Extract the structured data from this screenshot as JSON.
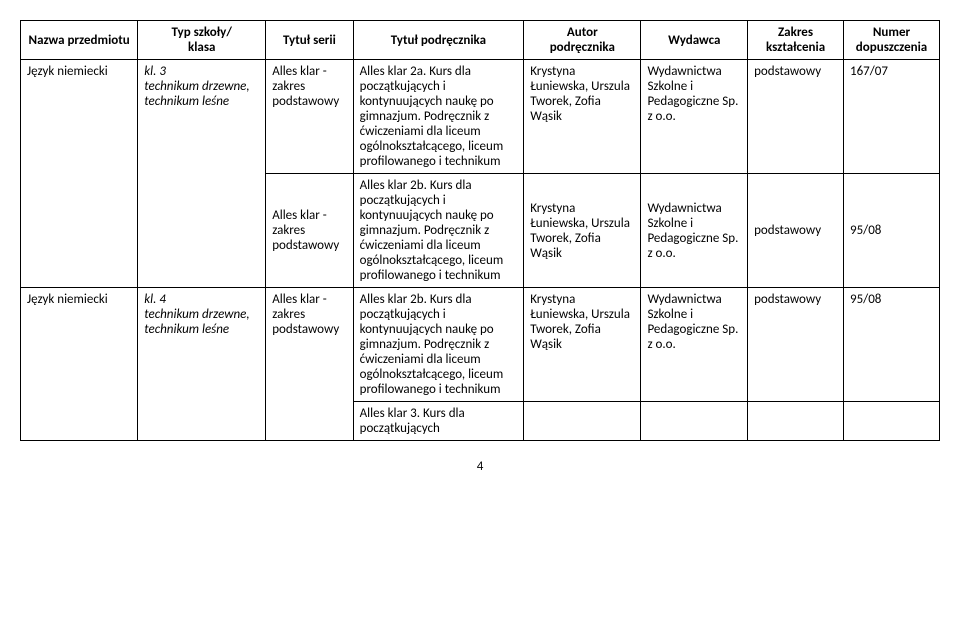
{
  "headers": {
    "subject": "Nazwa przedmiotu",
    "type_l1": "Typ szkoły/",
    "type_l2": "klasa",
    "series": "Tytuł serii",
    "title": "Tytuł podręcznika",
    "author_l1": "Autor",
    "author_l2": "podręcznika",
    "publisher": "Wydawca",
    "scope_l1": "Zakres",
    "scope_l2": "kształcenia",
    "num_l1": "Numer",
    "num_l2": "dopuszczenia"
  },
  "rows": [
    {
      "subject": "Język niemiecki",
      "type_line1": "kl. 3",
      "type_line2": "technikum drzewne,",
      "type_line3": "technikum leśne",
      "series": "Alles klar - zakres podstawowy",
      "title": "Alles klar 2a. Kurs dla początkujących i kontynuujących naukę po gimnazjum. Podręcznik z ćwiczeniami dla liceum ogólnokształcącego, liceum profilowanego i technikum",
      "author": "Krystyna Łuniewska, Urszula Tworek, Zofia Wąsik",
      "publisher": "Wydawnictwa Szkolne i Pedagogiczne Sp. z o.o.",
      "scope": "podstawowy",
      "num": "167/07"
    },
    {
      "subject": "",
      "type_line1": "",
      "type_line2": "",
      "type_line3": "",
      "series": "Alles klar - zakres podstawowy",
      "title": "Alles klar 2b. Kurs dla początkujących i kontynuujących naukę po gimnazjum. Podręcznik z ćwiczeniami dla liceum ogólnokształcącego, liceum profilowanego i technikum",
      "author": "Krystyna Łuniewska, Urszula Tworek, Zofia Wąsik",
      "publisher": "Wydawnictwa Szkolne i Pedagogiczne Sp. z o.o.",
      "scope": "podstawowy",
      "num": "95/08"
    },
    {
      "subject": "Język niemiecki",
      "type_line1": "kl. 4",
      "type_line2": "technikum drzewne,",
      "type_line3": "technikum leśne",
      "series": "Alles klar - zakres podstawowy",
      "title": "Alles klar 2b. Kurs dla początkujących i kontynuujących naukę po gimnazjum. Podręcznik z ćwiczeniami dla liceum ogólnokształcącego, liceum profilowanego i technikum",
      "author": "Krystyna Łuniewska, Urszula Tworek, Zofia Wąsik",
      "publisher": "Wydawnictwa Szkolne i Pedagogiczne Sp. z o.o.",
      "scope": "podstawowy",
      "num": "95/08"
    }
  ],
  "trailing_title": "Alles klar 3. Kurs dla początkujących",
  "page_number": "4"
}
